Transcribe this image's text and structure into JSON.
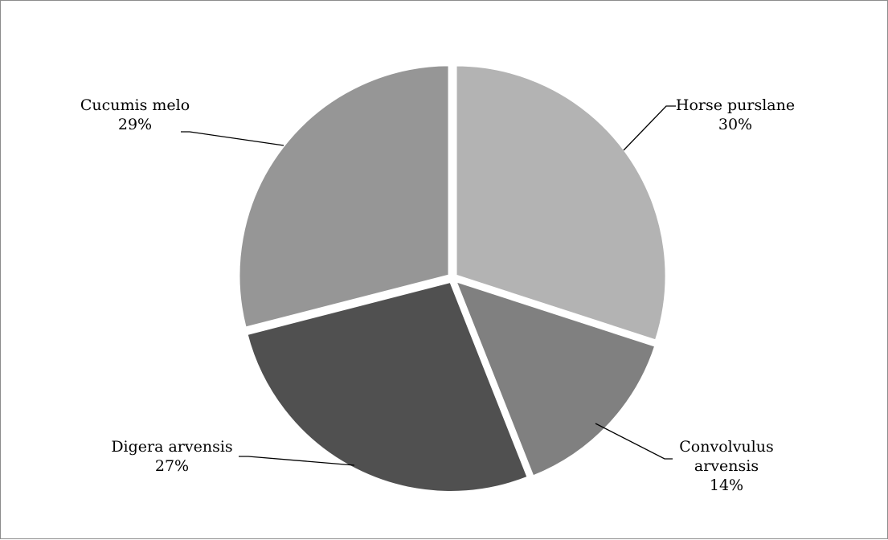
{
  "chart_data": {
    "type": "pie",
    "title": "",
    "slices": [
      {
        "label": "Horse purslane",
        "value": 30,
        "display": "30%",
        "color": "#b3b3b3"
      },
      {
        "label": "Convolvulus arvensis",
        "value": 14,
        "display": "14%",
        "color": "#808080"
      },
      {
        "label": "Digera arvensis",
        "value": 27,
        "display": "27%",
        "color": "#505050"
      },
      {
        "label": "Cucumis melo",
        "value": 29,
        "display": "29%",
        "color": "#969696"
      }
    ],
    "legend": "none",
    "data_labels": "outside-with-leader-lines",
    "slice_separator_color": "#ffffff"
  }
}
